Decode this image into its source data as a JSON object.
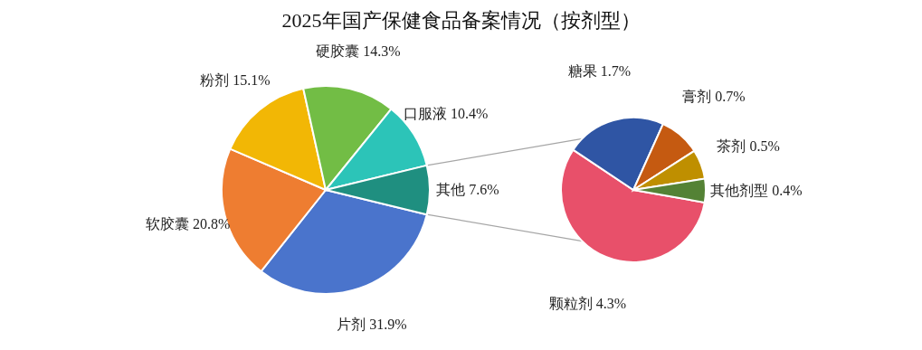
{
  "chart_data": [
    {
      "type": "pie",
      "title": "2025年国产保健食品备案情况（按剂型）",
      "categories": [
        "片剂",
        "软胶囊",
        "粉剂",
        "硬胶囊",
        "口服液",
        "其他"
      ],
      "values": [
        31.9,
        20.8,
        15.1,
        14.3,
        10.4,
        7.6
      ],
      "value_labels": [
        "31.9%",
        "20.8%",
        "15.1%",
        "14.3%",
        "10.4%",
        "7.6%"
      ],
      "colors": [
        "#4a74cc",
        "#ee7d31",
        "#f2b705",
        "#72bd45",
        "#2cc4b8",
        "#1f8f80"
      ]
    },
    {
      "type": "pie",
      "categories": [
        "颗粒剂",
        "糖果",
        "膏剂",
        "茶剂",
        "其他剂型"
      ],
      "values": [
        4.3,
        1.7,
        0.7,
        0.5,
        0.4
      ],
      "value_labels": [
        "4.3%",
        "1.7%",
        "0.7%",
        "0.5%",
        "0.4%"
      ],
      "colors": [
        "#e8506a",
        "#2f55a4",
        "#c55a11",
        "#bf8f00",
        "#548235"
      ]
    }
  ]
}
